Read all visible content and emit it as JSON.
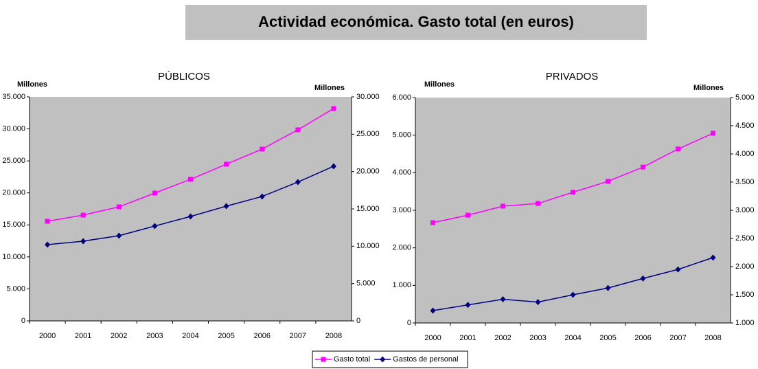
{
  "title": "Actividad económica. Gasto total (en euros)",
  "chart_data": [
    {
      "type": "line",
      "title": "PÚBLICOS",
      "ylabel": "Millones",
      "y2label": "Millones",
      "categories": [
        "2000",
        "2001",
        "2002",
        "2003",
        "2004",
        "2005",
        "2006",
        "2007",
        "2008"
      ],
      "series": [
        {
          "name": "Gasto total",
          "color": "#ff00ff",
          "marker": "square",
          "values": [
            15570,
            16530,
            17820,
            19970,
            22120,
            24480,
            26840,
            29850,
            33180
          ]
        },
        {
          "name": "Gastos de personal",
          "color": "#000080",
          "marker": "diamond",
          "axis": "y2",
          "values": [
            10220,
            10680,
            11410,
            12700,
            13990,
            15370,
            16660,
            18590,
            20710
          ]
        }
      ],
      "ylim": [
        0,
        35000
      ],
      "yticks": [
        {
          "value": 0,
          "label": "0"
        },
        {
          "value": 5000,
          "label": "5.000"
        },
        {
          "value": 10000,
          "label": "10.000"
        },
        {
          "value": 15000,
          "label": "15.000"
        },
        {
          "value": 20000,
          "label": "20.000"
        },
        {
          "value": 25000,
          "label": "25.000"
        },
        {
          "value": 30000,
          "label": "30.000"
        },
        {
          "value": 35000,
          "label": "35.000"
        }
      ],
      "y2lim": [
        0,
        30000
      ],
      "y2ticks": [
        {
          "value": 0,
          "label": "0"
        },
        {
          "value": 5000,
          "label": "5.000"
        },
        {
          "value": 10000,
          "label": "10.000"
        },
        {
          "value": 15000,
          "label": "15.000"
        },
        {
          "value": 20000,
          "label": "20.000"
        },
        {
          "value": 25000,
          "label": "25.000"
        },
        {
          "value": 30000,
          "label": "30.000"
        }
      ]
    },
    {
      "type": "line",
      "title": "PRIVADOS",
      "ylabel": "Millones",
      "y2label": "Millones",
      "categories": [
        "2000",
        "2001",
        "2002",
        "2003",
        "2004",
        "2005",
        "2006",
        "2007",
        "2008"
      ],
      "series": [
        {
          "name": "Gasto total",
          "color": "#ff00ff",
          "marker": "square",
          "values": [
            2670,
            2870,
            3110,
            3180,
            3480,
            3770,
            4150,
            4630,
            5050
          ]
        },
        {
          "name": "Gastos de personal",
          "color": "#000080",
          "marker": "diamond",
          "axis": "y2",
          "values": [
            1220,
            1320,
            1420,
            1370,
            1500,
            1620,
            1790,
            1950,
            2160
          ]
        }
      ],
      "ylim": [
        0,
        6000
      ],
      "yticks": [
        {
          "value": 0,
          "label": "0"
        },
        {
          "value": 1000,
          "label": "1.000"
        },
        {
          "value": 2000,
          "label": "2.000"
        },
        {
          "value": 3000,
          "label": "3.000"
        },
        {
          "value": 4000,
          "label": "4.000"
        },
        {
          "value": 5000,
          "label": "5.000"
        },
        {
          "value": 6000,
          "label": "6.000"
        }
      ],
      "y2lim": [
        1000,
        5000
      ],
      "y2ticks": [
        {
          "value": 1000,
          "label": "1.000"
        },
        {
          "value": 1500,
          "label": "1.500"
        },
        {
          "value": 2000,
          "label": "2.000"
        },
        {
          "value": 2500,
          "label": "2.500"
        },
        {
          "value": 3000,
          "label": "3.000"
        },
        {
          "value": 3500,
          "label": "3.500"
        },
        {
          "value": 4000,
          "label": "4.000"
        },
        {
          "value": 4500,
          "label": "4.500"
        },
        {
          "value": 5000,
          "label": "5.000"
        }
      ]
    }
  ]
}
